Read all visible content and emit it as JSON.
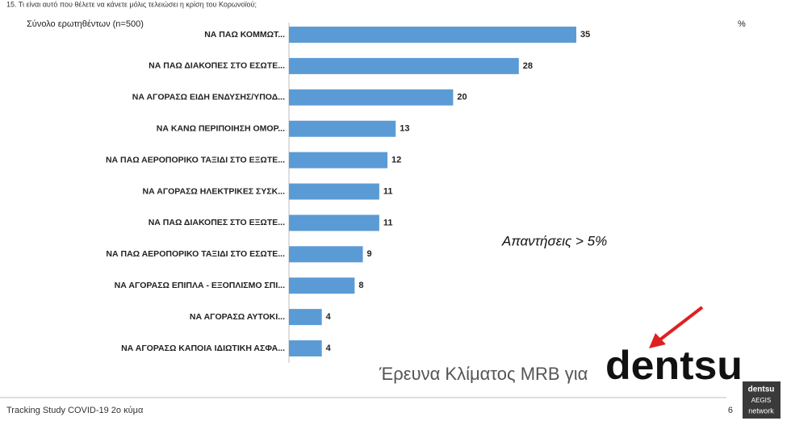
{
  "chart_data": {
    "type": "bar",
    "orientation": "horizontal",
    "title": "15. Τι είναι αυτό που θέλετε να κάνετε μόλις τελειώσει η κρίση του Κορωνοϊού;",
    "subtitle": "Σύνολο ερωτηθέντων (n=500)",
    "unit_label": "%",
    "annotation": "Απαντήσεις > 5%",
    "color": "#5b9bd5",
    "categories": [
      "ΝΑ ΠΑΩ ΚΟΜΜΩΤ...",
      "ΝΑ ΠΑΩ ΔΙΑΚΟΠΕΣ ΣΤΟ ΕΣΩΤΕ...",
      "ΝΑ ΑΓΟΡΑΣΩ ΕΙΔΗ ΕΝΔΥΣΗΣ/ΥΠΟΔ...",
      "ΝΑ ΚΑΝΩ ΠΕΡΙΠΟΙΗΣΗ ΟΜΟΡ...",
      "ΝΑ ΠΑΩ ΑΕΡΟΠΟΡΙΚΟ ΤΑΞΙΔΙ ΣΤΟ ΕΞΩΤΕ...",
      "ΝΑ ΑΓΟΡΑΣΩ ΗΛΕΚΤΡΙΚΕΣ ΣΥΣΚ...",
      "ΝΑ ΠΑΩ ΔΙΑΚΟΠΕΣ ΣΤΟ ΕΞΩΤΕ...",
      "ΝΑ ΠΑΩ ΑΕΡΟΠΟΡΙΚΟ ΤΑΞΙΔΙ ΣΤΟ ΕΣΩΤΕ...",
      "ΝΑ ΑΓΟΡΑΣΩ ΕΠΙΠΛΑ - ΕΞΟΠΛΙΣΜΟ ΣΠΙ...",
      "ΝΑ ΑΓΟΡΑΣΩ ΑΥΤΟΚΙ...",
      "ΝΑ ΑΓΟΡΑΣΩ ΚΑΠΟΙΑ ΙΔΙΩΤΙΚΗ ΑΣΦΑ..."
    ],
    "values": [
      35,
      28,
      20,
      13,
      12,
      11,
      11,
      9,
      8,
      4,
      4
    ]
  },
  "branding": {
    "credit": "Έρευνα Κλίματος MRB για",
    "logo": "dentsu",
    "badge": [
      "dentsu",
      "AEGIS",
      "network"
    ]
  },
  "footer": {
    "text": "Tracking Study COVID-19 2ο κύμα",
    "page": 6
  }
}
